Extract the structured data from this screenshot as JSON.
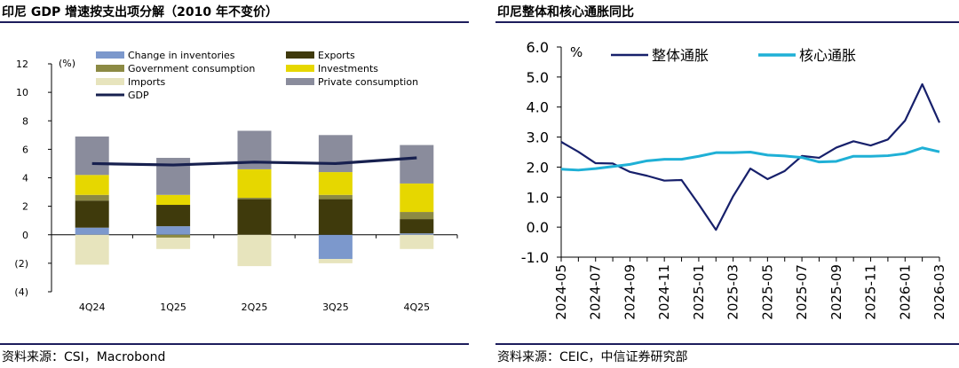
{
  "left_panel": {
    "title": "印尼 GDP 增速按支出项分解（2010 年不变价）",
    "source": "资料来源：CSI，Macrobond"
  },
  "right_panel": {
    "title": "印尼整体和核心通胀同比",
    "source": "资料来源：CEIC，中信证券研究部"
  },
  "chart_data": [
    {
      "type": "bar",
      "stacked": true,
      "unit_label": "(%)",
      "categories": [
        "4Q24",
        "1Q25",
        "2Q25",
        "3Q25",
        "4Q25"
      ],
      "ylim": [
        -4,
        12
      ],
      "yticks": [
        "12",
        "10",
        "8",
        "6",
        "4",
        "2",
        "0",
        "(2)",
        "(4)"
      ],
      "ytick_values": [
        12,
        10,
        8,
        6,
        4,
        2,
        0,
        -2,
        -4
      ],
      "legend_position": "top",
      "series": [
        {
          "name": "Change in inventories",
          "color": "#7c98cc",
          "values": [
            0.5,
            0.6,
            0.0,
            -1.7,
            0.1
          ]
        },
        {
          "name": "Exports",
          "color": "#3f3a0c",
          "values": [
            1.9,
            1.5,
            2.5,
            2.5,
            1.0
          ]
        },
        {
          "name": "Government consumption",
          "color": "#8c8a44",
          "values": [
            0.4,
            -0.2,
            0.1,
            0.3,
            0.5
          ]
        },
        {
          "name": "Investments",
          "color": "#e6d700",
          "values": [
            1.4,
            0.7,
            2.0,
            1.6,
            2.0
          ]
        },
        {
          "name": "Imports",
          "color": "#e7e4bd",
          "values": [
            -2.1,
            -0.8,
            -2.2,
            -0.3,
            -1.0
          ]
        },
        {
          "name": "Private consumption",
          "color": "#8a8c9c",
          "values": [
            2.7,
            2.6,
            2.7,
            2.6,
            2.7
          ]
        }
      ],
      "line": {
        "name": "GDP",
        "color": "#17204f",
        "values": [
          5.0,
          4.9,
          5.1,
          5.0,
          5.4
        ]
      }
    },
    {
      "type": "line",
      "unit_label": "%",
      "x": [
        "2024-05",
        "2024-06",
        "2024-07",
        "2024-08",
        "2024-09",
        "2024-10",
        "2024-11",
        "2024-12",
        "2025-01",
        "2025-02",
        "2025-03",
        "2025-04",
        "2025-05",
        "2025-06",
        "2025-07",
        "2025-08",
        "2025-09",
        "2025-10",
        "2025-11",
        "2025-12",
        "2026-01",
        "2026-02",
        "2026-03"
      ],
      "xtick_labels": [
        "2024-05",
        "2024-07",
        "2024-09",
        "2024-11",
        "2025-01",
        "2025-03",
        "2025-05",
        "2025-07",
        "2025-09",
        "2025-11",
        "2026-01",
        "2026-03"
      ],
      "ylim": [
        -1.0,
        6.0
      ],
      "yticks": [
        "6.0",
        "5.0",
        "4.0",
        "3.0",
        "2.0",
        "1.0",
        "0.0",
        "-1.0"
      ],
      "ytick_values": [
        6,
        5,
        4,
        3,
        2,
        1,
        0,
        -1
      ],
      "legend_position": "top",
      "series": [
        {
          "name": "整体通胀",
          "color": "#17206b",
          "values": [
            2.84,
            2.51,
            2.13,
            2.12,
            1.84,
            1.71,
            1.55,
            1.57,
            0.76,
            -0.09,
            1.03,
            1.95,
            1.6,
            1.87,
            2.37,
            2.31,
            2.65,
            2.86,
            2.72,
            2.92,
            3.55,
            4.76,
            3.48
          ]
        },
        {
          "name": "核心通胀",
          "color": "#1fb0d6",
          "values": [
            1.93,
            1.9,
            1.95,
            2.02,
            2.09,
            2.21,
            2.26,
            2.26,
            2.36,
            2.48,
            2.48,
            2.5,
            2.4,
            2.37,
            2.32,
            2.17,
            2.19,
            2.36,
            2.36,
            2.38,
            2.45,
            2.64,
            2.51
          ]
        }
      ]
    }
  ]
}
